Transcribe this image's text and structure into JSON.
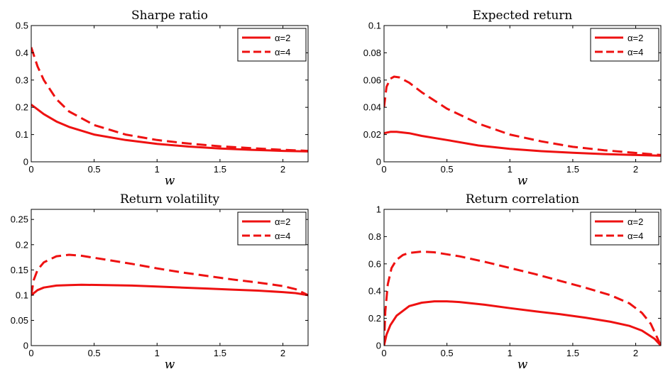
{
  "colors": {
    "series": "#ee1111"
  },
  "chart_data": [
    {
      "type": "line",
      "title": "Sharpe ratio",
      "xlabel": "w",
      "ylabel": "",
      "xlim": [
        0,
        2.2
      ],
      "ylim": [
        0,
        0.5
      ],
      "xticks": [
        0,
        0.5,
        1,
        1.5,
        2
      ],
      "xtick_labels": [
        "0",
        "0.5",
        "1",
        "1.5",
        "2"
      ],
      "yticks": [
        0,
        0.1,
        0.2,
        0.3,
        0.4,
        0.5
      ],
      "ytick_labels": [
        "0",
        "0.1",
        "0.2",
        "0.3",
        "0.4",
        "0.5"
      ],
      "grid": false,
      "legend": "top-right",
      "series": [
        {
          "name": "α=2",
          "style": "solid",
          "x": [
            0,
            0.1,
            0.2,
            0.3,
            0.5,
            0.75,
            1.0,
            1.25,
            1.5,
            1.75,
            2.0,
            2.2
          ],
          "y": [
            0.21,
            0.175,
            0.148,
            0.128,
            0.1,
            0.08,
            0.066,
            0.056,
            0.049,
            0.044,
            0.04,
            0.038
          ]
        },
        {
          "name": "α=4",
          "style": "dashed",
          "x": [
            0,
            0.05,
            0.1,
            0.2,
            0.3,
            0.5,
            0.75,
            1.0,
            1.25,
            1.5,
            1.75,
            2.0,
            2.2
          ],
          "y": [
            0.42,
            0.35,
            0.3,
            0.23,
            0.185,
            0.135,
            0.1,
            0.08,
            0.067,
            0.057,
            0.05,
            0.044,
            0.04
          ]
        }
      ]
    },
    {
      "type": "line",
      "title": "Expected return",
      "xlabel": "w",
      "ylabel": "",
      "xlim": [
        0,
        2.2
      ],
      "ylim": [
        0,
        0.1
      ],
      "xticks": [
        0,
        0.5,
        1,
        1.5,
        2
      ],
      "xtick_labels": [
        "0",
        "0.5",
        "1",
        "1.5",
        "2"
      ],
      "yticks": [
        0,
        0.02,
        0.04,
        0.06,
        0.08,
        0.1
      ],
      "ytick_labels": [
        "0",
        "0.02",
        "0.04",
        "0.06",
        "0.08",
        "0.1"
      ],
      "grid": false,
      "legend": "top-right",
      "series": [
        {
          "name": "α=2",
          "style": "solid",
          "x": [
            0,
            0.05,
            0.1,
            0.2,
            0.3,
            0.5,
            0.75,
            1.0,
            1.25,
            1.5,
            1.75,
            2.0,
            2.2
          ],
          "y": [
            0.021,
            0.022,
            0.022,
            0.021,
            0.019,
            0.016,
            0.012,
            0.0095,
            0.0078,
            0.0066,
            0.0057,
            0.005,
            0.0045
          ]
        },
        {
          "name": "α=4",
          "style": "dashed",
          "x": [
            0,
            0.02,
            0.05,
            0.08,
            0.12,
            0.2,
            0.3,
            0.5,
            0.75,
            1.0,
            1.25,
            1.5,
            1.75,
            2.0,
            2.2
          ],
          "y": [
            0.04,
            0.055,
            0.061,
            0.0625,
            0.062,
            0.058,
            0.051,
            0.039,
            0.028,
            0.02,
            0.015,
            0.011,
            0.0085,
            0.0065,
            0.005
          ]
        }
      ]
    },
    {
      "type": "line",
      "title": "Return volatility",
      "xlabel": "w",
      "ylabel": "",
      "xlim": [
        0,
        2.2
      ],
      "ylim": [
        0,
        0.27
      ],
      "xticks": [
        0,
        0.5,
        1,
        1.5,
        2
      ],
      "xtick_labels": [
        "0",
        "0.5",
        "1",
        "1.5",
        "2"
      ],
      "yticks": [
        0,
        0.05,
        0.1,
        0.15,
        0.2,
        0.25
      ],
      "ytick_labels": [
        "0",
        "0.05",
        "0.1",
        "0.15",
        "0.2",
        "0.25"
      ],
      "grid": false,
      "legend": "top-right",
      "series": [
        {
          "name": "α=2",
          "style": "solid",
          "x": [
            0,
            0.05,
            0.1,
            0.2,
            0.3,
            0.4,
            0.6,
            0.8,
            1.0,
            1.2,
            1.4,
            1.6,
            1.8,
            2.0,
            2.1,
            2.2
          ],
          "y": [
            0.1,
            0.11,
            0.115,
            0.119,
            0.12,
            0.1205,
            0.12,
            0.119,
            0.117,
            0.115,
            0.113,
            0.111,
            0.109,
            0.106,
            0.104,
            0.1
          ]
        },
        {
          "name": "α=4",
          "style": "dashed",
          "x": [
            0,
            0.02,
            0.05,
            0.1,
            0.2,
            0.3,
            0.4,
            0.6,
            0.8,
            1.0,
            1.2,
            1.4,
            1.6,
            1.8,
            2.0,
            2.1,
            2.2
          ],
          "y": [
            0.1,
            0.13,
            0.15,
            0.165,
            0.177,
            0.18,
            0.178,
            0.17,
            0.162,
            0.153,
            0.145,
            0.138,
            0.131,
            0.125,
            0.118,
            0.112,
            0.1
          ]
        }
      ]
    },
    {
      "type": "line",
      "title": "Return correlation",
      "xlabel": "w",
      "ylabel": "",
      "xlim": [
        0,
        2.2
      ],
      "ylim": [
        0,
        1
      ],
      "xticks": [
        0,
        0.5,
        1,
        1.5,
        2
      ],
      "xtick_labels": [
        "0",
        "0.5",
        "1",
        "1.5",
        "2"
      ],
      "yticks": [
        0,
        0.2,
        0.4,
        0.6,
        0.8,
        1
      ],
      "ytick_labels": [
        "0",
        "0.2",
        "0.4",
        "0.6",
        "0.8",
        "1"
      ],
      "grid": false,
      "legend": "top-right",
      "series": [
        {
          "name": "α=2",
          "style": "solid",
          "x": [
            0,
            0.02,
            0.05,
            0.1,
            0.2,
            0.3,
            0.4,
            0.5,
            0.6,
            0.8,
            1.0,
            1.2,
            1.4,
            1.6,
            1.8,
            1.95,
            2.05,
            2.15,
            2.2
          ],
          "y": [
            0,
            0.08,
            0.15,
            0.22,
            0.29,
            0.315,
            0.325,
            0.325,
            0.32,
            0.3,
            0.275,
            0.252,
            0.23,
            0.205,
            0.175,
            0.145,
            0.11,
            0.05,
            0
          ]
        },
        {
          "name": "α=4",
          "style": "dashed",
          "x": [
            0,
            0.01,
            0.03,
            0.06,
            0.1,
            0.15,
            0.2,
            0.3,
            0.4,
            0.6,
            0.8,
            1.0,
            1.2,
            1.4,
            1.6,
            1.8,
            1.95,
            2.05,
            2.12,
            2.2
          ],
          "y": [
            0,
            0.25,
            0.45,
            0.57,
            0.63,
            0.665,
            0.68,
            0.69,
            0.685,
            0.655,
            0.615,
            0.57,
            0.525,
            0.475,
            0.425,
            0.37,
            0.31,
            0.24,
            0.16,
            0
          ]
        }
      ]
    }
  ]
}
